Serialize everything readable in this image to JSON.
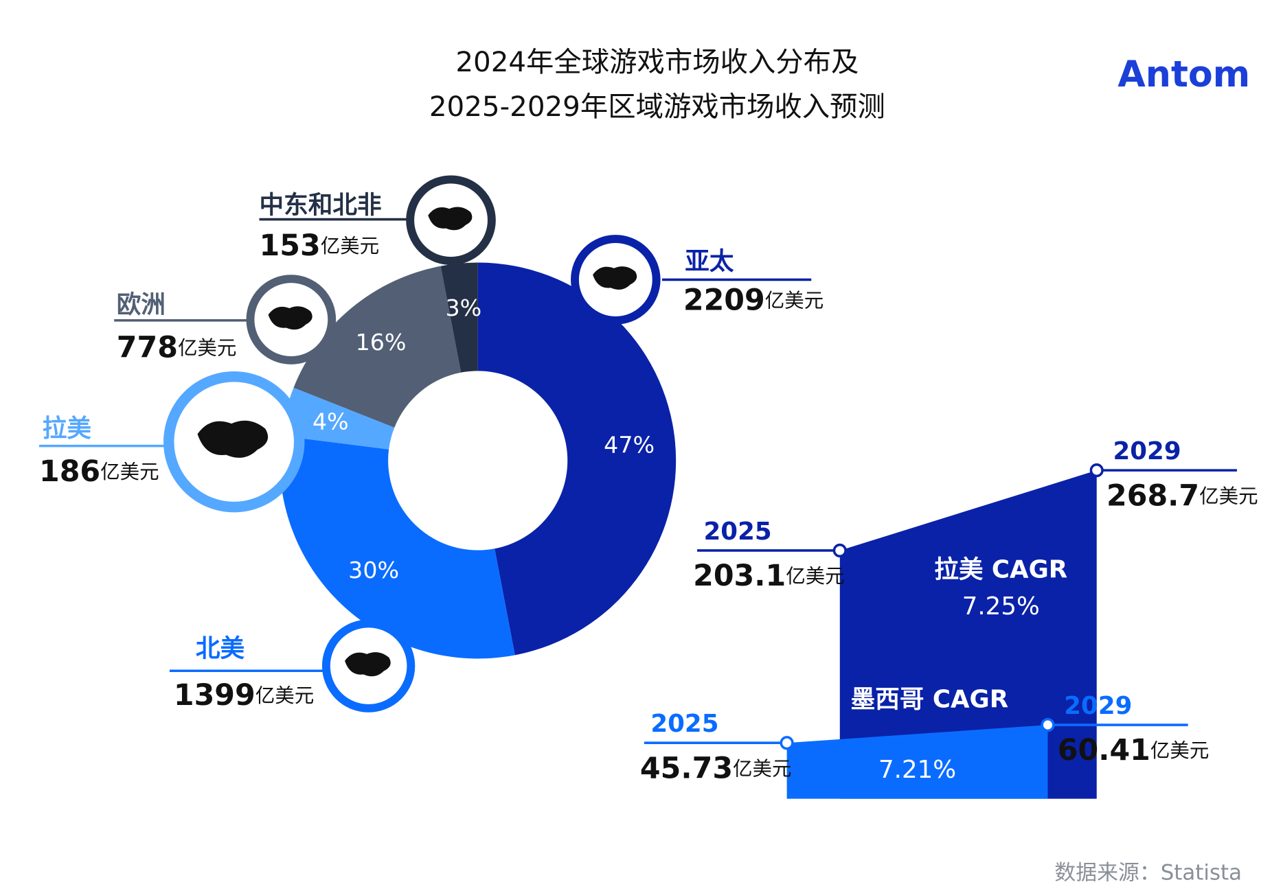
{
  "title": [
    "2024年全球游戏市场收入分布及",
    "2025-2029年区域游戏市场收入预测"
  ],
  "logo": "Antom",
  "source": "数据来源：Statista",
  "chart_data": [
    {
      "type": "pie",
      "categories": [
        "亚太",
        "北美",
        "拉美",
        "欧洲",
        "中东和北非"
      ],
      "values": [
        47,
        30,
        4,
        16,
        3
      ],
      "value_labels": [
        "47%",
        "30%",
        "4%",
        "16%",
        "3%"
      ],
      "revenue": [
        2209,
        1399,
        186,
        778,
        153
      ],
      "unit": "亿美元",
      "colors": [
        "#0a22a8",
        "#0a6cff",
        "#55a8ff",
        "#525f75",
        "#243046"
      ]
    },
    {
      "type": "area",
      "categories": [
        "2025",
        "2029"
      ],
      "unit": "亿美元",
      "series": [
        {
          "name": "拉美 CAGR",
          "color": "#0a22a8",
          "values": [
            203.1,
            268.7
          ],
          "cagr": {
            "value": 7.25,
            "label": "7.25%"
          }
        },
        {
          "name": "墨西哥 CAGR",
          "color": "#0a6cff",
          "values": [
            45.73,
            60.41
          ],
          "cagr": {
            "value": 7.21,
            "label": "7.21%"
          }
        }
      ]
    }
  ]
}
